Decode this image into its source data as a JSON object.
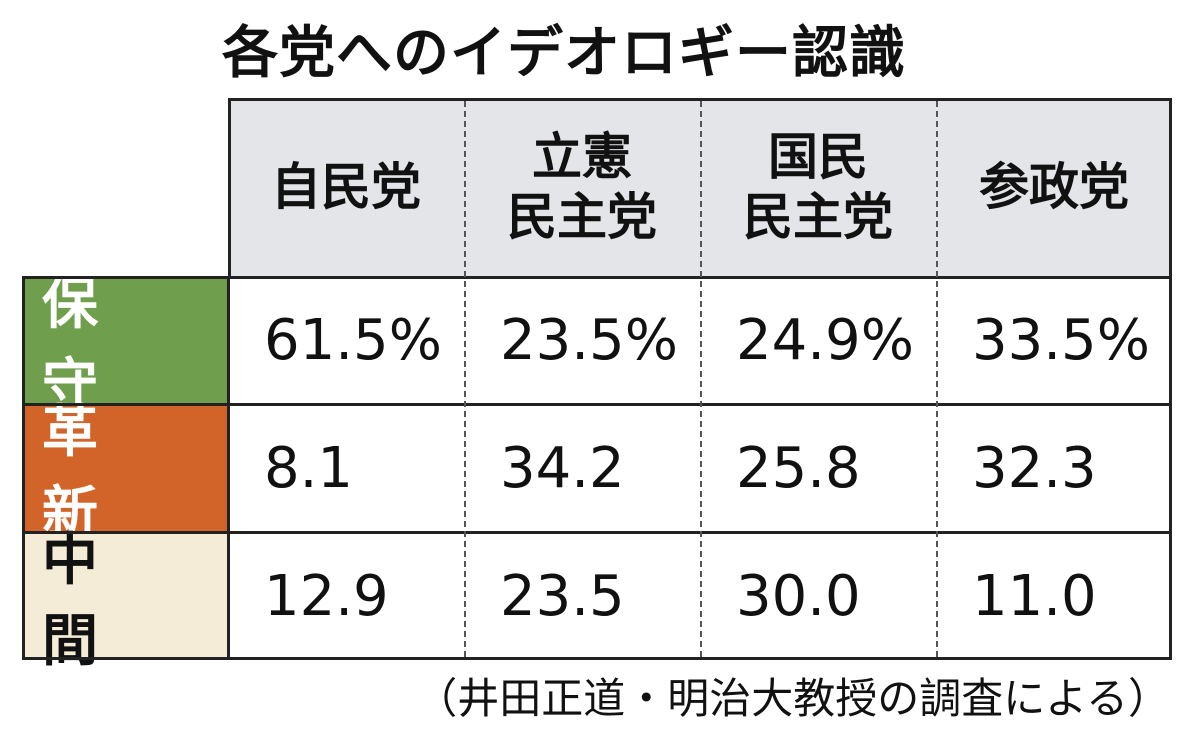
{
  "chart_data": {
    "type": "table",
    "title": "各党へのイデオロギー認識",
    "columns": [
      "自民党",
      "立憲\n民主党",
      "国民\n民主党",
      "参政党"
    ],
    "rows": [
      {
        "label": "保 守",
        "color": "#6f9e4c",
        "text_color": "#ffffff",
        "values": [
          "61.5%",
          "23.5%",
          "24.9%",
          "33.5%"
        ]
      },
      {
        "label": "革 新",
        "color": "#d2642a",
        "text_color": "#ffffff",
        "values": [
          "8.1",
          "34.2",
          "25.8",
          "32.3"
        ]
      },
      {
        "label": "中 間",
        "color": "#f4ecd7",
        "text_color": "#111111",
        "values": [
          "12.9",
          "23.5",
          "30.0",
          "11.0"
        ]
      }
    ],
    "header_background": "#e3e5e8",
    "source": "（井田正道・明治大教授の調査による）"
  }
}
